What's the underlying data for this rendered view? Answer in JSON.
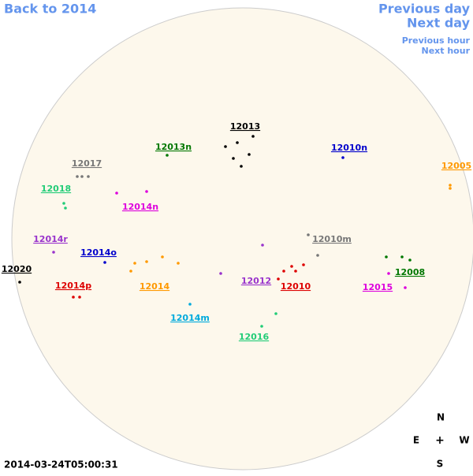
{
  "nav": {
    "back": "Back to 2014",
    "previous_day": "Previous day",
    "next_day": "Next day",
    "previous_hour": "Previous hour",
    "next_hour": "Next hour"
  },
  "regions": [
    {
      "label": "12013",
      "color": "#000000"
    },
    {
      "label": "12013n",
      "color": "#007700"
    },
    {
      "label": "12010n",
      "color": "#0000cc"
    },
    {
      "label": "12017",
      "color": "#777777"
    },
    {
      "label": "12005",
      "color": "#ff9900"
    },
    {
      "label": "12018",
      "color": "#22cc77"
    },
    {
      "label": "12014n",
      "color": "#dd00dd"
    },
    {
      "label": "12014r",
      "color": "#9933cc"
    },
    {
      "label": "12010m",
      "color": "#777777"
    },
    {
      "label": "12014o",
      "color": "#0000cc"
    },
    {
      "label": "12020",
      "color": "#000000"
    },
    {
      "label": "12008",
      "color": "#007700"
    },
    {
      "label": "12012",
      "color": "#9933cc"
    },
    {
      "label": "12014p",
      "color": "#dd0000"
    },
    {
      "label": "12014",
      "color": "#ff9900"
    },
    {
      "label": "12010",
      "color": "#dd0000"
    },
    {
      "label": "12015",
      "color": "#dd00dd"
    },
    {
      "label": "12014m",
      "color": "#00aadd"
    },
    {
      "label": "12016",
      "color": "#22cc77"
    }
  ],
  "timestamp": "2014-03-24T05:00:31",
  "compass": {
    "north": "N",
    "east": "E",
    "center": "+",
    "west": "W",
    "south": "S"
  }
}
